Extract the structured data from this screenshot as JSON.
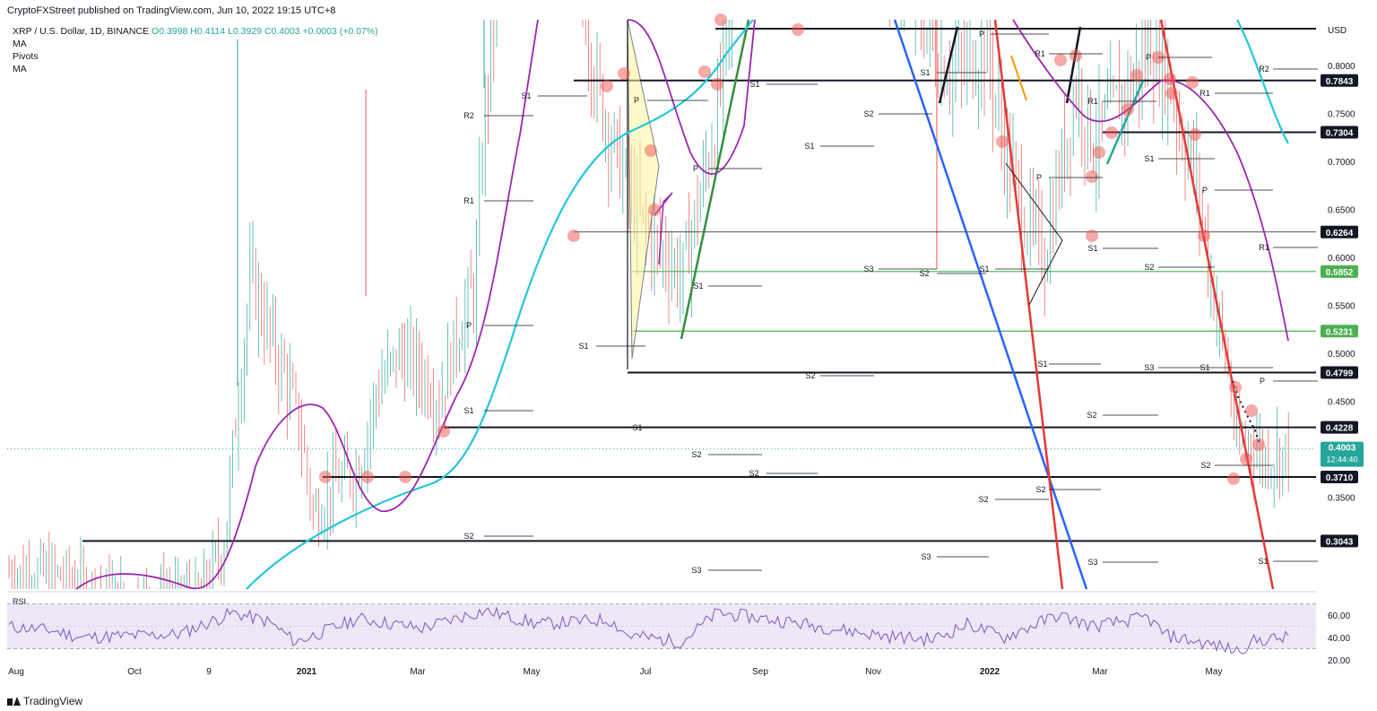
{
  "header": {
    "publisher_line": "CryptoFXStreet published on TradingView.com, Jun 10, 2022 19:15 UTC+8",
    "symbol_line": "XRP / U.S. Dollar, 1D, BINANCE",
    "ohlc": "O0.3998 H0.4114 L0.3929 C0.4003 +0.0003 (+0.07%)",
    "indicators": [
      "MA",
      "Pivots",
      "MA"
    ]
  },
  "footer": {
    "brand": "TradingView"
  },
  "chart_data": {
    "type": "line",
    "title": "XRP / U.S. Dollar, 1D, BINANCE",
    "currency_label": "USD",
    "x_tick_labels": [
      "Aug",
      "Oct",
      "9",
      "2021",
      "Mar",
      "May",
      "Jul",
      "Sep",
      "Nov",
      "2022",
      "Mar",
      "May"
    ],
    "y_tick_labels": [
      "0.8000",
      "0.7500",
      "0.7000",
      "0.6500",
      "0.6000",
      "0.5500",
      "0.5000",
      "0.4500",
      "0.3500"
    ],
    "ylim": [
      0.24,
      0.83
    ],
    "last_price": {
      "value": "0.4003",
      "countdown": "12:44:40"
    },
    "horizontal_levels": [
      {
        "value": 0.7843,
        "label": "0.7843",
        "kind": "black"
      },
      {
        "value": 0.7304,
        "label": "0.7304",
        "kind": "black"
      },
      {
        "value": 0.6264,
        "label": "0.6264",
        "kind": "thin"
      },
      {
        "value": 0.5852,
        "label": "0.5852",
        "kind": "green"
      },
      {
        "value": 0.5231,
        "label": "0.5231",
        "kind": "green"
      },
      {
        "value": 0.4799,
        "label": "0.4799",
        "kind": "black"
      },
      {
        "value": 0.4228,
        "label": "0.4228",
        "kind": "black"
      },
      {
        "value": 0.371,
        "label": "0.3710",
        "kind": "black"
      },
      {
        "value": 0.3043,
        "label": "0.3043",
        "kind": "black"
      }
    ],
    "pivot_labels": [
      "R2",
      "R1",
      "P",
      "S1",
      "S2",
      "S3"
    ],
    "rsi": {
      "label": "RSI",
      "y_tick_labels": [
        "60.00",
        "40.00",
        "20.00"
      ],
      "upper_band": 70,
      "lower_band": 30,
      "ylim": [
        14,
        78
      ]
    },
    "colors": {
      "up": "#26a69a",
      "down": "#ef5350",
      "ma_fast": "#9c27b0",
      "ma_slow": "#26c6da",
      "trend_blue": "#2962ff",
      "trend_red": "#e53935",
      "trend_green": "#388e3c",
      "level_green": "#4caf50",
      "rsi_line": "#7e57c2",
      "rsi_band": "#ede7f6"
    }
  }
}
